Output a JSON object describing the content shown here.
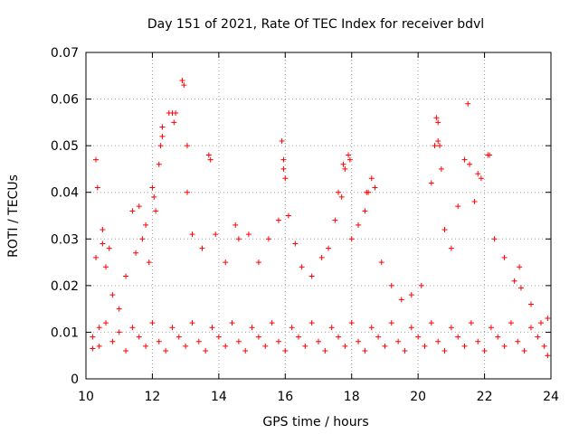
{
  "chart_data": {
    "type": "scatter",
    "title": "Day 151 of 2021, Rate Of TEC Index for receiver bdvl",
    "xlabel": "GPS time / hours",
    "ylabel": "ROTI / TECUs",
    "xlim": [
      10,
      24
    ],
    "ylim": [
      0,
      0.07
    ],
    "xticks": [
      10,
      12,
      14,
      16,
      18,
      20,
      22,
      24
    ],
    "yticks": [
      0,
      0.01,
      0.02,
      0.03,
      0.04,
      0.05,
      0.06,
      0.07
    ],
    "ytick_labels": [
      "0",
      "0.01",
      "0.02",
      "0.03",
      "0.04",
      "0.05",
      "0.06",
      "0.07"
    ],
    "grid": true,
    "marker": "plus",
    "color": "#ff0000",
    "series": [
      {
        "name": "ROTI",
        "points": [
          [
            10.2,
            0.0065
          ],
          [
            10.3,
            0.026
          ],
          [
            10.3,
            0.047
          ],
          [
            10.35,
            0.041
          ],
          [
            10.4,
            0.011
          ],
          [
            10.5,
            0.032
          ],
          [
            10.5,
            0.029
          ],
          [
            10.6,
            0.024
          ],
          [
            10.7,
            0.028
          ],
          [
            10.8,
            0.018
          ],
          [
            11.0,
            0.015
          ],
          [
            11.2,
            0.022
          ],
          [
            11.4,
            0.036
          ],
          [
            11.5,
            0.027
          ],
          [
            11.6,
            0.037
          ],
          [
            11.7,
            0.03
          ],
          [
            11.8,
            0.033
          ],
          [
            11.9,
            0.025
          ],
          [
            12.0,
            0.041
          ],
          [
            12.05,
            0.039
          ],
          [
            12.1,
            0.036
          ],
          [
            12.2,
            0.046
          ],
          [
            12.25,
            0.05
          ],
          [
            12.3,
            0.052
          ],
          [
            12.3,
            0.054
          ],
          [
            12.5,
            0.057
          ],
          [
            12.6,
            0.057
          ],
          [
            12.65,
            0.055
          ],
          [
            12.7,
            0.057
          ],
          [
            12.9,
            0.064
          ],
          [
            12.95,
            0.063
          ],
          [
            13.05,
            0.05
          ],
          [
            13.05,
            0.04
          ],
          [
            13.2,
            0.031
          ],
          [
            13.5,
            0.028
          ],
          [
            13.7,
            0.048
          ],
          [
            13.75,
            0.047
          ],
          [
            13.9,
            0.031
          ],
          [
            14.2,
            0.025
          ],
          [
            14.5,
            0.033
          ],
          [
            14.6,
            0.03
          ],
          [
            14.9,
            0.031
          ],
          [
            15.2,
            0.025
          ],
          [
            15.5,
            0.03
          ],
          [
            15.8,
            0.034
          ],
          [
            15.9,
            0.051
          ],
          [
            15.95,
            0.047
          ],
          [
            15.95,
            0.045
          ],
          [
            16.0,
            0.043
          ],
          [
            16.1,
            0.035
          ],
          [
            16.3,
            0.029
          ],
          [
            16.5,
            0.024
          ],
          [
            16.8,
            0.022
          ],
          [
            17.1,
            0.026
          ],
          [
            17.3,
            0.028
          ],
          [
            17.5,
            0.034
          ],
          [
            17.6,
            0.04
          ],
          [
            17.7,
            0.039
          ],
          [
            17.75,
            0.046
          ],
          [
            17.8,
            0.045
          ],
          [
            17.9,
            0.048
          ],
          [
            17.95,
            0.047
          ],
          [
            18.0,
            0.03
          ],
          [
            18.2,
            0.033
          ],
          [
            18.4,
            0.036
          ],
          [
            18.45,
            0.04
          ],
          [
            18.5,
            0.04
          ],
          [
            18.6,
            0.043
          ],
          [
            18.7,
            0.041
          ],
          [
            18.9,
            0.025
          ],
          [
            19.2,
            0.02
          ],
          [
            19.5,
            0.017
          ],
          [
            19.8,
            0.018
          ],
          [
            20.1,
            0.02
          ],
          [
            20.4,
            0.042
          ],
          [
            20.5,
            0.05
          ],
          [
            20.55,
            0.056
          ],
          [
            20.6,
            0.055
          ],
          [
            20.6,
            0.051
          ],
          [
            20.65,
            0.05
          ],
          [
            20.7,
            0.045
          ],
          [
            20.8,
            0.032
          ],
          [
            21.0,
            0.028
          ],
          [
            21.2,
            0.037
          ],
          [
            21.4,
            0.047
          ],
          [
            21.5,
            0.059
          ],
          [
            21.55,
            0.046
          ],
          [
            21.7,
            0.038
          ],
          [
            21.8,
            0.044
          ],
          [
            21.9,
            0.043
          ],
          [
            22.1,
            0.048
          ],
          [
            22.15,
            0.048
          ],
          [
            22.3,
            0.03
          ],
          [
            22.6,
            0.026
          ],
          [
            22.9,
            0.021
          ],
          [
            23.05,
            0.024
          ],
          [
            23.1,
            0.0195
          ],
          [
            23.4,
            0.016
          ],
          [
            23.7,
            0.012
          ],
          [
            23.9,
            0.013
          ],
          [
            10.2,
            0.009
          ],
          [
            10.4,
            0.007
          ],
          [
            10.6,
            0.012
          ],
          [
            10.8,
            0.008
          ],
          [
            11.0,
            0.01
          ],
          [
            11.2,
            0.006
          ],
          [
            11.4,
            0.011
          ],
          [
            11.6,
            0.009
          ],
          [
            11.8,
            0.007
          ],
          [
            12.0,
            0.012
          ],
          [
            12.2,
            0.008
          ],
          [
            12.4,
            0.006
          ],
          [
            12.6,
            0.011
          ],
          [
            12.8,
            0.009
          ],
          [
            13.0,
            0.007
          ],
          [
            13.2,
            0.012
          ],
          [
            13.4,
            0.008
          ],
          [
            13.6,
            0.006
          ],
          [
            13.8,
            0.011
          ],
          [
            14.0,
            0.009
          ],
          [
            14.2,
            0.007
          ],
          [
            14.4,
            0.012
          ],
          [
            14.6,
            0.008
          ],
          [
            14.8,
            0.006
          ],
          [
            15.0,
            0.011
          ],
          [
            15.2,
            0.009
          ],
          [
            15.4,
            0.007
          ],
          [
            15.6,
            0.012
          ],
          [
            15.8,
            0.008
          ],
          [
            16.0,
            0.006
          ],
          [
            16.2,
            0.011
          ],
          [
            16.4,
            0.009
          ],
          [
            16.6,
            0.007
          ],
          [
            16.8,
            0.012
          ],
          [
            17.0,
            0.008
          ],
          [
            17.2,
            0.006
          ],
          [
            17.4,
            0.011
          ],
          [
            17.6,
            0.009
          ],
          [
            17.8,
            0.007
          ],
          [
            18.0,
            0.012
          ],
          [
            18.2,
            0.008
          ],
          [
            18.4,
            0.006
          ],
          [
            18.6,
            0.011
          ],
          [
            18.8,
            0.009
          ],
          [
            19.0,
            0.007
          ],
          [
            19.2,
            0.012
          ],
          [
            19.4,
            0.008
          ],
          [
            19.6,
            0.006
          ],
          [
            19.8,
            0.011
          ],
          [
            20.0,
            0.009
          ],
          [
            20.2,
            0.007
          ],
          [
            20.4,
            0.012
          ],
          [
            20.6,
            0.008
          ],
          [
            20.8,
            0.006
          ],
          [
            21.0,
            0.011
          ],
          [
            21.2,
            0.009
          ],
          [
            21.4,
            0.007
          ],
          [
            21.6,
            0.012
          ],
          [
            21.8,
            0.008
          ],
          [
            22.0,
            0.006
          ],
          [
            22.2,
            0.011
          ],
          [
            22.4,
            0.009
          ],
          [
            22.6,
            0.007
          ],
          [
            22.8,
            0.012
          ],
          [
            23.0,
            0.008
          ],
          [
            23.2,
            0.006
          ],
          [
            23.4,
            0.011
          ],
          [
            23.6,
            0.009
          ],
          [
            23.8,
            0.007
          ],
          [
            23.9,
            0.005
          ]
        ]
      }
    ]
  }
}
